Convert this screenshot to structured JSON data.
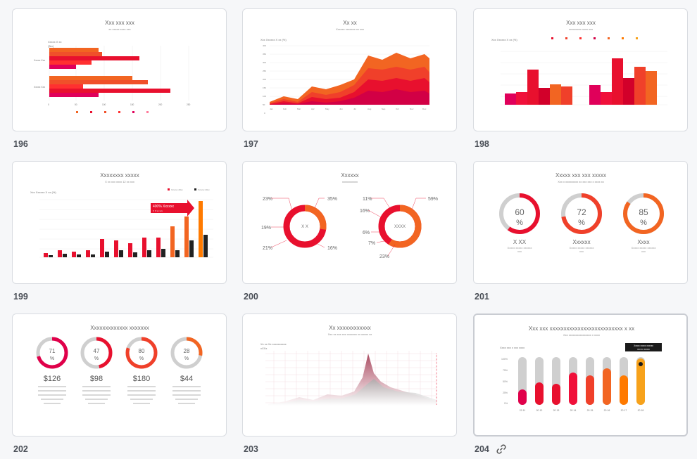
{
  "slides": [
    {
      "number": "196",
      "title": "Xxx xxx xxx",
      "subtitle": "xx xxxxx xxxx xxx",
      "ylabel": "Xxxxx X xx",
      "ylabel2": "($m)",
      "cat1": "Xxxxx Xxx",
      "cat2": "Xxxxx Xxx",
      "ticks": [
        "0",
        "50",
        "100",
        "150",
        "200",
        "250"
      ]
    },
    {
      "number": "197",
      "title": "Xx xx",
      "subtitle": "Xxxxxx xxxxxxx xx xxx",
      "ylabel": "Xxx Xxxxxx X xx (%)",
      "yticks": [
        "400",
        "350",
        "300",
        "250",
        "200",
        "150",
        "100",
        "50",
        "0"
      ],
      "xticks": [
        "Jan",
        "Feb",
        "Mar",
        "Apr",
        "May",
        "Jun",
        "Jul",
        "Aug",
        "Sep",
        "Oct",
        "Nov",
        "Dec"
      ]
    },
    {
      "number": "198",
      "title": "Xxx xxx xxx",
      "subtitle": "xxxxxxxxx xxxx xxx",
      "ylabel": "Xxx Xxxxxx X xx (%)",
      "values": [
        "20",
        "20",
        "140",
        "25",
        "30",
        "28",
        "110",
        "35",
        "150",
        "60",
        "70"
      ]
    },
    {
      "number": "199",
      "title": "Xxxxxxxx xxxxx",
      "subtitle": "X xx xxx xxxx 12 xx xxx",
      "ylabel": "Xxx Xxxxxx X xx (%)",
      "callout": "400% Xxxxxx",
      "callout2": "X X xx xxx",
      "legend": [
        "Xxxxxx 20xx",
        "Xxxxxx 20xx"
      ]
    },
    {
      "number": "200",
      "title": "Xxxxxx",
      "subtitle": "xxxxxxxxxxx",
      "donut1": "X X",
      "donut2": "XXXX",
      "pcts": [
        "23%",
        "35%",
        "19%",
        "16%",
        "21%",
        "11%",
        "59%",
        "16%",
        "6%",
        "7%",
        "23%"
      ]
    },
    {
      "number": "201",
      "title": "Xxxxx xxx xxx xxxxx",
      "subtitle": "Xxx x xxxxxxxxx xx xxx xxx x xxxx xx",
      "rings": [
        {
          "pct": "60",
          "label": "X XX"
        },
        {
          "pct": "72",
          "label": "Xxxxxx"
        },
        {
          "pct": "85",
          "label": "Xxxx"
        }
      ],
      "desc": "Xxxxx xxxxx xxxxxx",
      "desc2": "xxx",
      "unit": "%"
    },
    {
      "number": "202",
      "title": "Xxxxxxxxxxxxx xxxxxxx",
      "rings": [
        {
          "pct": "71",
          "amount": "$126"
        },
        {
          "pct": "47",
          "amount": "$98"
        },
        {
          "pct": "80",
          "amount": "$180"
        },
        {
          "pct": "28",
          "amount": "$44"
        }
      ],
      "unit": "%"
    },
    {
      "number": "203",
      "title": "Xx xxxxxxxxxxxx",
      "subtitle": "Xxx xx xxx xxx xxxxxxx xx xxxxx xx",
      "ylabel": "Xx xx Xx xxxxxxxxxx",
      "ylabel2": "xXXx"
    },
    {
      "number": "204",
      "title": "Xxx xxx xxxxxxxxxxxxxxxxxxxxxxxxxx x xx",
      "subtitle": "Xxx xxxxxxxxxxxxxxxx x xxxx",
      "tooltip": "Xxxxx xxxxx xxxxxx",
      "tooltip2": "xxx xx xxxxx",
      "ylabel": "Xxxx xxx x xxx xxxx",
      "yticks": [
        "100%",
        "75%",
        "50%",
        "25%",
        "0%"
      ],
      "years": [
        "20\n11",
        "20\n12",
        "20\n13",
        "20\n14",
        "20\n15",
        "20\n16",
        "20\n17",
        "20\n18"
      ]
    }
  ],
  "colors": {
    "red": "#e8102e",
    "crimson": "#d2002a",
    "orange": "#f26522",
    "orange2": "#ff7a00",
    "amber": "#f7a21b",
    "grey": "#cfcfcf",
    "dark": "#222222"
  },
  "icons": {
    "link": "link-icon"
  }
}
